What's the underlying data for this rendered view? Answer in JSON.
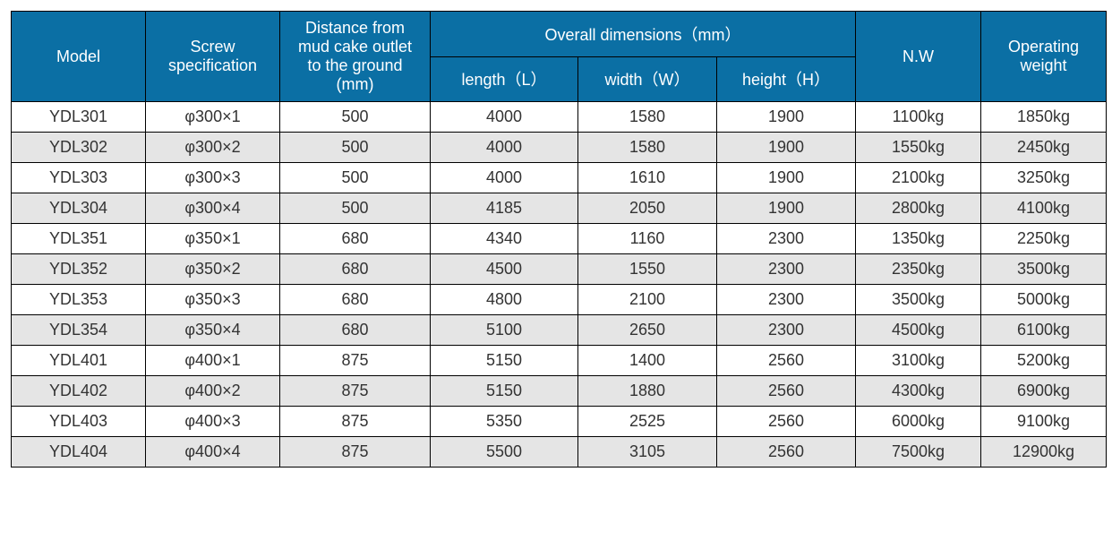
{
  "table": {
    "header_bg": "#0b6fa4",
    "header_text_color": "#ffffff",
    "row_alt_bg": "#e5e5e5",
    "row_bg": "#ffffff",
    "border_color": "#000000",
    "font_family": "Arial",
    "header_fontsize": 18,
    "cell_fontsize": 18,
    "columns": {
      "model": "Model",
      "screw": "Screw\nspecification",
      "distance": "Distance from\nmud cake outlet\nto the ground\n(mm)",
      "dimensions_group": "Overall dimensions（mm）",
      "length": "length（L）",
      "width": "width（W）",
      "height": "height（H）",
      "nw": "N.W",
      "opweight": "Operating\nweight"
    },
    "rows": [
      {
        "model": "YDL301",
        "screw": "φ300×1",
        "distance": "500",
        "length": "4000",
        "width": "1580",
        "height": "1900",
        "nw": "1100kg",
        "opweight": "1850kg"
      },
      {
        "model": "YDL302",
        "screw": "φ300×2",
        "distance": "500",
        "length": "4000",
        "width": "1580",
        "height": "1900",
        "nw": "1550kg",
        "opweight": "2450kg"
      },
      {
        "model": "YDL303",
        "screw": "φ300×3",
        "distance": "500",
        "length": "4000",
        "width": "1610",
        "height": "1900",
        "nw": "2100kg",
        "opweight": "3250kg"
      },
      {
        "model": "YDL304",
        "screw": "φ300×4",
        "distance": "500",
        "length": "4185",
        "width": "2050",
        "height": "1900",
        "nw": "2800kg",
        "opweight": "4100kg"
      },
      {
        "model": "YDL351",
        "screw": "φ350×1",
        "distance": "680",
        "length": "4340",
        "width": "1160",
        "height": "2300",
        "nw": "1350kg",
        "opweight": "2250kg"
      },
      {
        "model": "YDL352",
        "screw": "φ350×2",
        "distance": "680",
        "length": "4500",
        "width": "1550",
        "height": "2300",
        "nw": "2350kg",
        "opweight": "3500kg"
      },
      {
        "model": "YDL353",
        "screw": "φ350×3",
        "distance": "680",
        "length": "4800",
        "width": "2100",
        "height": "2300",
        "nw": "3500kg",
        "opweight": "5000kg"
      },
      {
        "model": "YDL354",
        "screw": "φ350×4",
        "distance": "680",
        "length": "5100",
        "width": "2650",
        "height": "2300",
        "nw": "4500kg",
        "opweight": "6100kg"
      },
      {
        "model": "YDL401",
        "screw": "φ400×1",
        "distance": "875",
        "length": "5150",
        "width": "1400",
        "height": "2560",
        "nw": "3100kg",
        "opweight": "5200kg"
      },
      {
        "model": "YDL402",
        "screw": "φ400×2",
        "distance": "875",
        "length": "5150",
        "width": "1880",
        "height": "2560",
        "nw": "4300kg",
        "opweight": "6900kg"
      },
      {
        "model": "YDL403",
        "screw": "φ400×3",
        "distance": "875",
        "length": "5350",
        "width": "2525",
        "height": "2560",
        "nw": "6000kg",
        "opweight": "9100kg"
      },
      {
        "model": "YDL404",
        "screw": "φ400×4",
        "distance": "875",
        "length": "5500",
        "width": "3105",
        "height": "2560",
        "nw": "7500kg",
        "opweight": "12900kg"
      }
    ]
  }
}
